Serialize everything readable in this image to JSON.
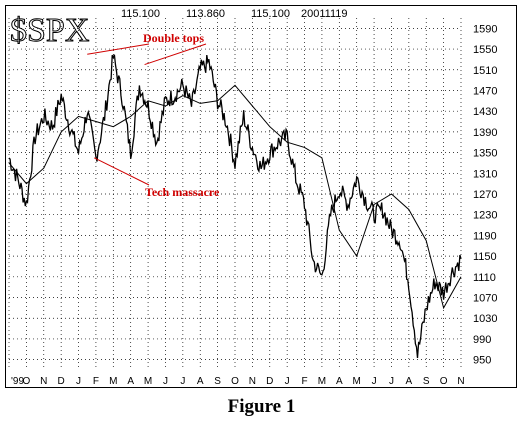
{
  "caption": "Figure 1",
  "chart_data": {
    "type": "line",
    "symbol": "$SPX",
    "header_values": [
      "115.100",
      "113.860",
      "115.100",
      "20011119"
    ],
    "y_ticks": [
      950,
      990,
      1030,
      1070,
      1110,
      1150,
      1190,
      1230,
      1270,
      1310,
      1350,
      1390,
      1430,
      1470,
      1510,
      1550,
      1590
    ],
    "ylim": [
      930,
      1610
    ],
    "x_ticks": [
      "'99",
      "O",
      "N",
      "D",
      "J",
      "F",
      "M",
      "A",
      "M",
      "J",
      "J",
      "A",
      "S",
      "O",
      "N",
      "D",
      "J",
      "F",
      "M",
      "A",
      "M",
      "J",
      "J",
      "A",
      "S",
      "O",
      "N"
    ],
    "annotations": [
      {
        "text": "Double tops",
        "color": "#d00000"
      },
      {
        "text": "Tech massacre",
        "color": "#d00000"
      }
    ],
    "series": [
      {
        "style": "price",
        "x": [
          0,
          0.5,
          1,
          1.5,
          2,
          2.5,
          3,
          3.5,
          4,
          4.5,
          5,
          5.5,
          6,
          6.5,
          7,
          7.5,
          8,
          8.5,
          9,
          9.5,
          10,
          10.5,
          11,
          11.5,
          12,
          12.5,
          13,
          13.5,
          14,
          14.5,
          15,
          15.5,
          16,
          16.5,
          17,
          17.5,
          18,
          18.5,
          19,
          19.5,
          20,
          20.5,
          21,
          21.5,
          22,
          22.5,
          23,
          23.5,
          24,
          24.5,
          25,
          25.5,
          26
        ],
        "values": [
          1340,
          1300,
          1250,
          1380,
          1420,
          1400,
          1460,
          1400,
          1350,
          1430,
          1340,
          1420,
          1535,
          1460,
          1350,
          1480,
          1440,
          1370,
          1450,
          1460,
          1480,
          1440,
          1510,
          1525,
          1450,
          1410,
          1330,
          1420,
          1360,
          1320,
          1350,
          1370,
          1380,
          1300,
          1250,
          1140,
          1110,
          1230,
          1280,
          1250,
          1300,
          1260,
          1230,
          1240,
          1200,
          1180,
          1100,
          960,
          1050,
          1100,
          1080,
          1120,
          1145
        ]
      },
      {
        "style": "moving-average",
        "x": [
          0,
          1,
          2,
          3,
          4,
          5,
          6,
          7,
          8,
          9,
          10,
          11,
          12,
          13,
          14,
          15,
          16,
          17,
          18,
          19,
          20,
          21,
          22,
          23,
          24,
          25,
          26
        ],
        "values": [
          1330,
          1290,
          1320,
          1390,
          1420,
          1410,
          1400,
          1420,
          1450,
          1440,
          1460,
          1445,
          1450,
          1480,
          1440,
          1400,
          1370,
          1360,
          1340,
          1200,
          1150,
          1250,
          1270,
          1240,
          1180,
          1050,
          1110
        ]
      }
    ]
  }
}
